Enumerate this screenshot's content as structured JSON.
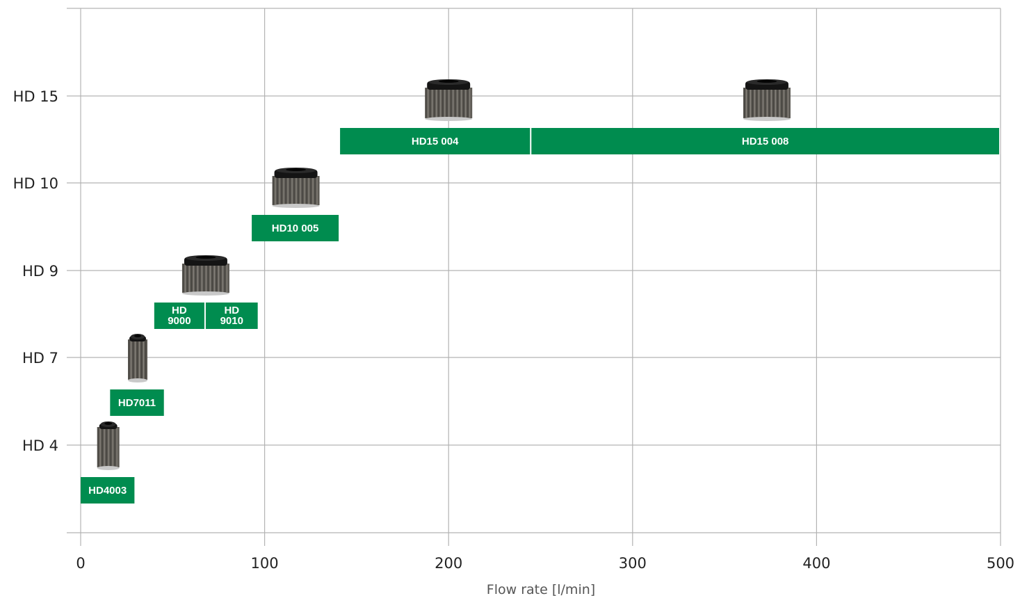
{
  "chart_data": {
    "type": "bar",
    "orientation": "horizontal-range",
    "title": "",
    "xlabel": "Flow rate [l/min]",
    "ylabel": "",
    "xlim": [
      0,
      500
    ],
    "x_ticks": [
      0,
      100,
      200,
      300,
      400,
      500
    ],
    "x_tick_labels": [
      "0",
      "100",
      "200",
      "300",
      "400",
      "500"
    ],
    "categories": [
      "HD 4",
      "HD 7",
      "HD 9",
      "HD 10",
      "HD 15"
    ],
    "grid": true,
    "bar_color": "#008c4f",
    "series": [
      {
        "label": "HD4003",
        "category": "HD 4",
        "x_start": 0,
        "x_end": 30
      },
      {
        "label": "HD7011",
        "category": "HD 7",
        "x_start": 16,
        "x_end": 46
      },
      {
        "label": "HD\n9000",
        "category": "HD 9",
        "x_start": 40,
        "x_end": 68
      },
      {
        "label": "HD\n9010",
        "category": "HD 9",
        "x_start": 68,
        "x_end": 97
      },
      {
        "label": "HD10 005",
        "category": "HD 10",
        "x_start": 93,
        "x_end": 141
      },
      {
        "label": "HD15 004",
        "category": "HD 15",
        "x_start": 141,
        "x_end": 245
      },
      {
        "label": "HD15 008",
        "category": "HD 15",
        "x_start": 245,
        "x_end": 500
      }
    ],
    "icons": [
      {
        "name": "hd4-filter-cartridge-image",
        "category": "HD 4",
        "x": 15
      },
      {
        "name": "hd7-filter-cartridge-image",
        "category": "HD 7",
        "x": 31
      },
      {
        "name": "hd9-filter-cartridge-image",
        "category": "HD 9",
        "x": 68
      },
      {
        "name": "hd10-filter-cartridge-image",
        "category": "HD 10",
        "x": 117
      },
      {
        "name": "hd15-filter-cartridge-image",
        "category": "HD 15",
        "x": 200
      },
      {
        "name": "hd15-filter-cartridge-image",
        "category": "HD 15",
        "x": 373
      }
    ]
  }
}
